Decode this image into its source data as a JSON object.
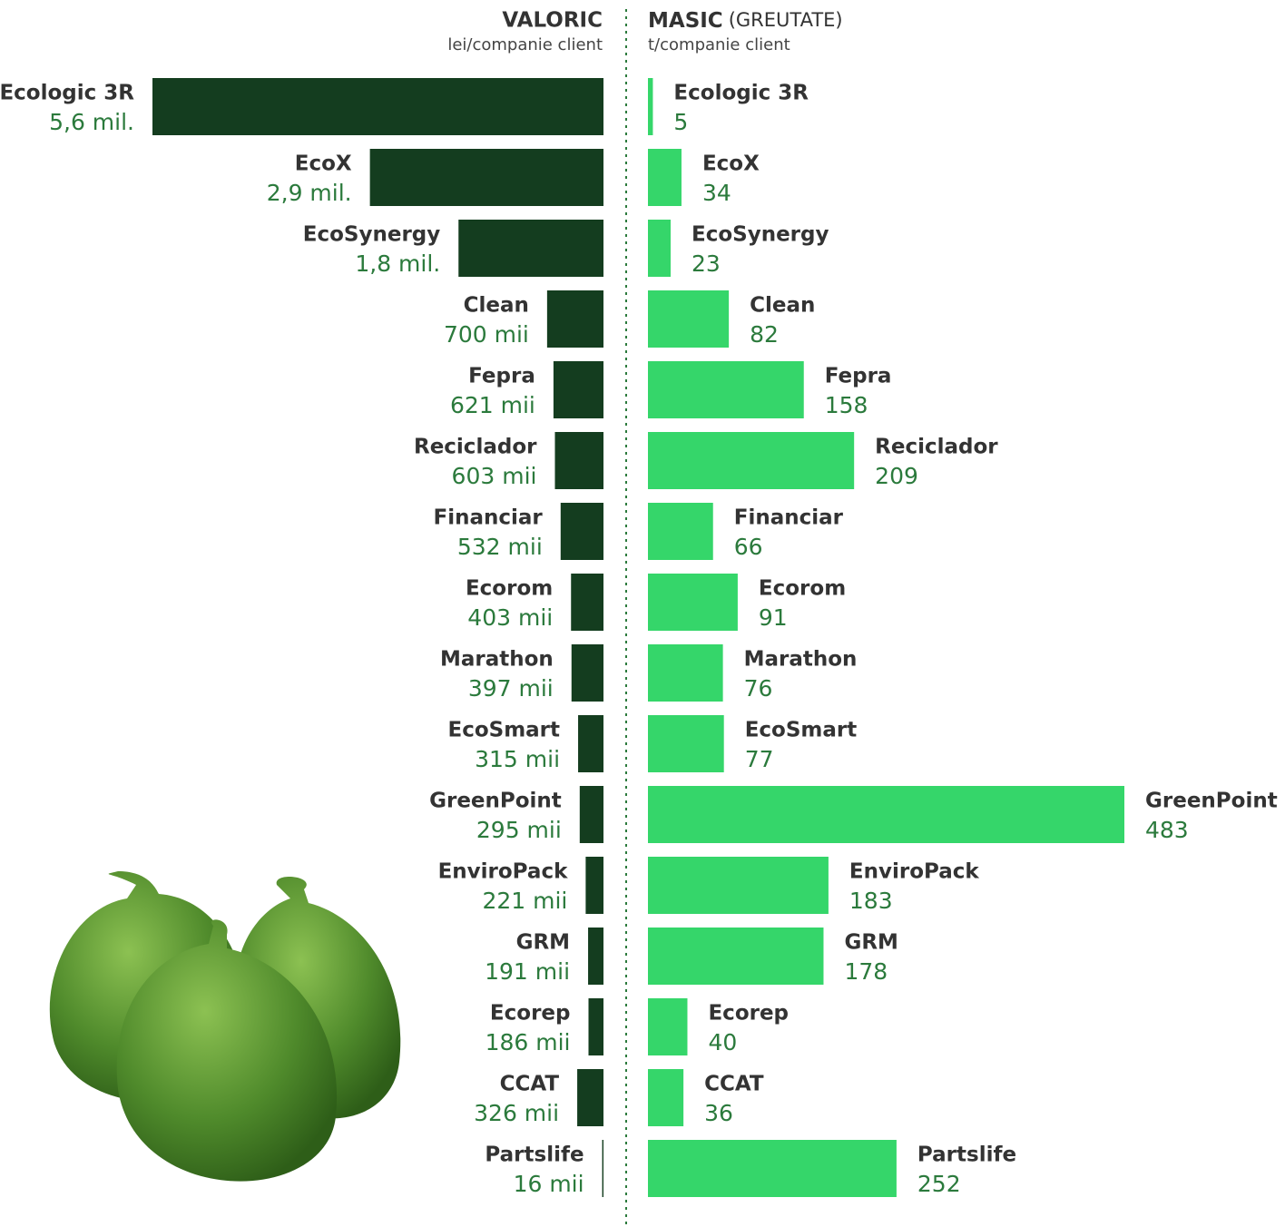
{
  "chart_data": [
    {
      "type": "bar",
      "orientation": "horizontal",
      "direction": "left",
      "title": "VALORIC",
      "subtitle": "lei/companie client",
      "color": "#143d1f",
      "categories": [
        "Ecologic 3R",
        "EcoX",
        "EcoSynergy",
        "Clean",
        "Fepra",
        "Reciclador",
        "Financiar",
        "Ecorom",
        "Marathon",
        "EcoSmart",
        "GreenPoint",
        "EnviroPack",
        "GRM",
        "Ecorep",
        "CCAT",
        "Partslife"
      ],
      "values": [
        5600000,
        2900000,
        1800000,
        700000,
        621000,
        603000,
        532000,
        403000,
        397000,
        315000,
        295000,
        221000,
        191000,
        186000,
        326000,
        16000
      ],
      "value_labels": [
        "5,6 mil.",
        "2,9 mil.",
        "1,8 mil.",
        "700 mii",
        "621 mii",
        "603 mii",
        "532 mii",
        "403 mii",
        "397 mii",
        "315 mii",
        "295 mii",
        "221 mii",
        "191 mii",
        "186 mii",
        "326 mii",
        "16 mii"
      ]
    },
    {
      "type": "bar",
      "orientation": "horizontal",
      "direction": "right",
      "title": "MASIC",
      "title_note": "(GREUTATE)",
      "subtitle": "t/companie client",
      "color": "#35d66a",
      "categories": [
        "Ecologic 3R",
        "EcoX",
        "EcoSynergy",
        "Clean",
        "Fepra",
        "Reciclador",
        "Financiar",
        "Ecorom",
        "Marathon",
        "EcoSmart",
        "GreenPoint",
        "EnviroPack",
        "GRM",
        "Ecorep",
        "CCAT",
        "Partslife"
      ],
      "values": [
        5,
        34,
        23,
        82,
        158,
        209,
        66,
        91,
        76,
        77,
        483,
        183,
        178,
        40,
        36,
        252
      ]
    }
  ]
}
